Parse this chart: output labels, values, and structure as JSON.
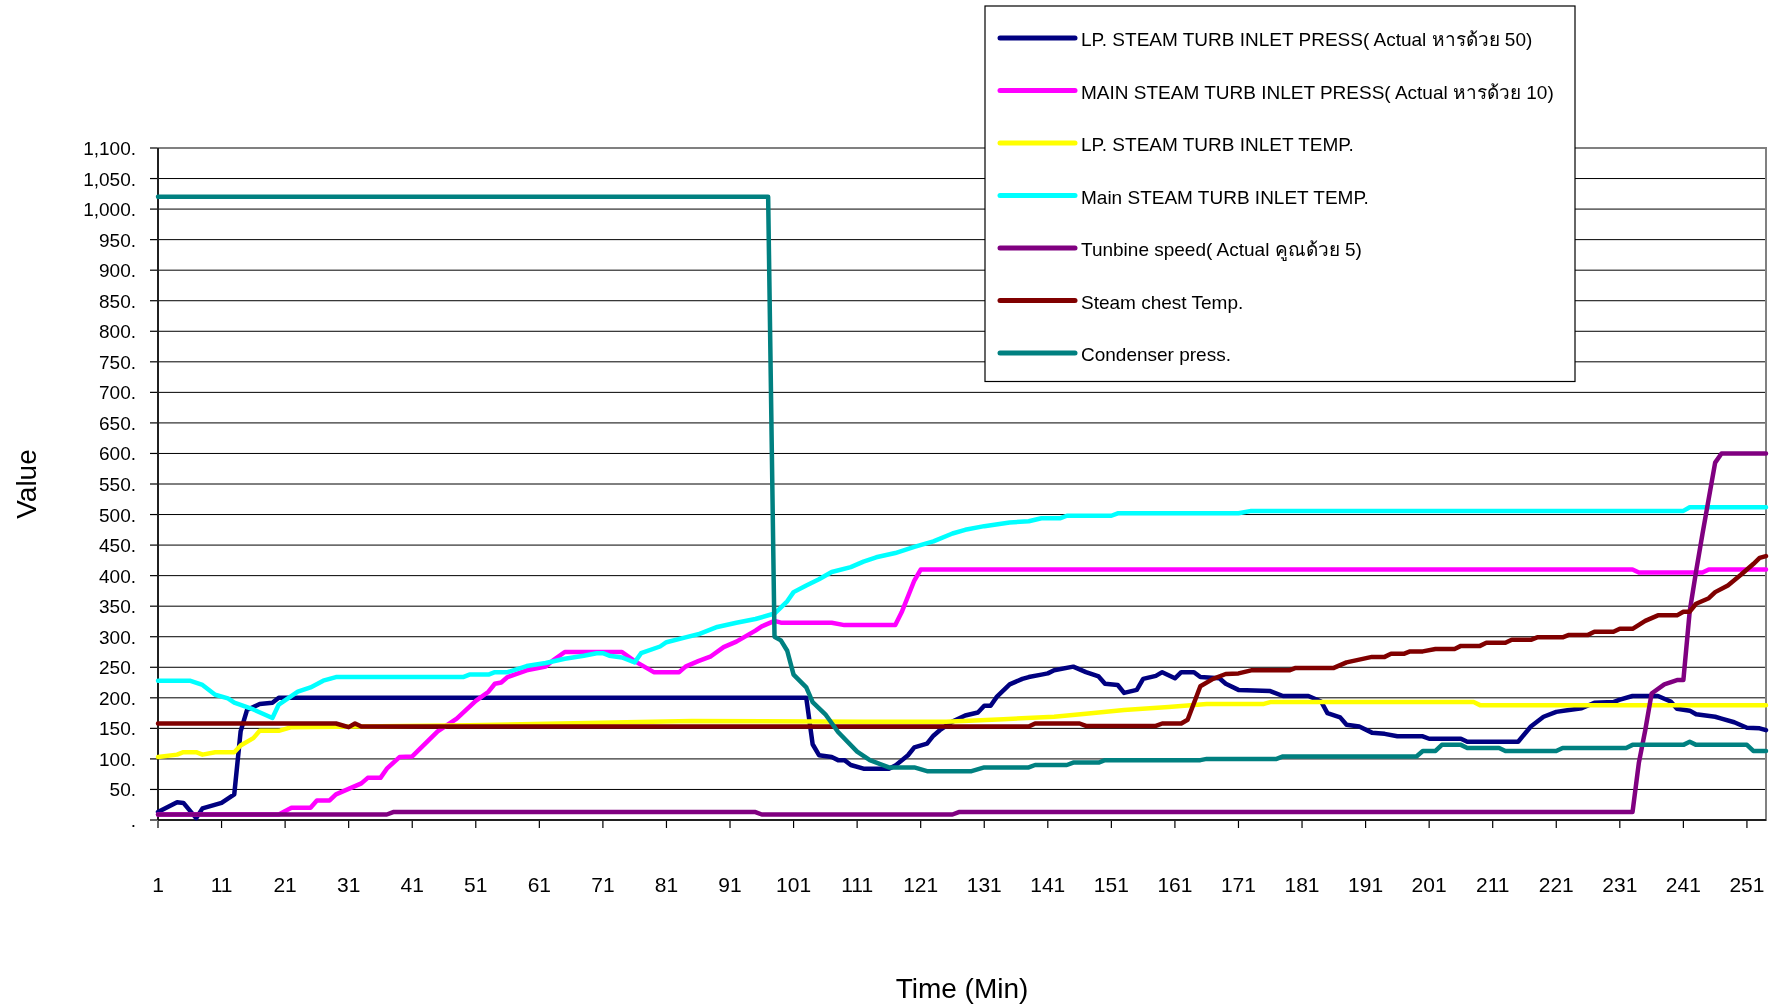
{
  "chart_data": {
    "type": "line",
    "xlabel": "Time (Min)",
    "ylabel": "Value",
    "xlim": [
      1,
      254
    ],
    "xticks": [
      1,
      11,
      21,
      31,
      41,
      51,
      61,
      71,
      81,
      91,
      101,
      111,
      121,
      131,
      141,
      151,
      161,
      171,
      181,
      191,
      201,
      211,
      221,
      231,
      241,
      251
    ],
    "ylim": [
      0,
      1100
    ],
    "yticks": [
      {
        "value": 0,
        "label": "."
      },
      {
        "value": 50,
        "label": "50."
      },
      {
        "value": 100,
        "label": "100."
      },
      {
        "value": 150,
        "label": "150."
      },
      {
        "value": 200,
        "label": "200."
      },
      {
        "value": 250,
        "label": "250."
      },
      {
        "value": 300,
        "label": "300."
      },
      {
        "value": 350,
        "label": "350."
      },
      {
        "value": 400,
        "label": "400."
      },
      {
        "value": 450,
        "label": "450."
      },
      {
        "value": 500,
        "label": "500."
      },
      {
        "value": 550,
        "label": "550."
      },
      {
        "value": 600,
        "label": "600."
      },
      {
        "value": 650,
        "label": "650."
      },
      {
        "value": 700,
        "label": "700."
      },
      {
        "value": 750,
        "label": "750."
      },
      {
        "value": 800,
        "label": "800."
      },
      {
        "value": 850,
        "label": "850."
      },
      {
        "value": 900,
        "label": "900."
      },
      {
        "value": 950,
        "label": "950."
      },
      {
        "value": 1000,
        "label": "1,000."
      },
      {
        "value": 1050,
        "label": "1,050."
      },
      {
        "value": 1100,
        "label": "1,100."
      }
    ],
    "grid": "y",
    "legend": "top right",
    "marker": "none",
    "line_style": "solid",
    "series": [
      {
        "name": "LP. STEAM TURB INLET PRESS( Actual หารด้วย 50)",
        "color": "#000080",
        "x": [
          1,
          4,
          5,
          7,
          8,
          11,
          13,
          14,
          15,
          17,
          19,
          20,
          103,
          104,
          105,
          107,
          108,
          109,
          110,
          112,
          116,
          117,
          119,
          120,
          122,
          123,
          124,
          126,
          128,
          130,
          131,
          132,
          133,
          135,
          137,
          138,
          140,
          141,
          142,
          145,
          147,
          149,
          150,
          152,
          153,
          155,
          156,
          158,
          159,
          161,
          162,
          164,
          165,
          168,
          169,
          171,
          176,
          178,
          182,
          184,
          185,
          187,
          188,
          190,
          192,
          194,
          196,
          200,
          201,
          206,
          207,
          215,
          217,
          219,
          221,
          223,
          225,
          227,
          230,
          231,
          233,
          237,
          239,
          240,
          242,
          243,
          246,
          247,
          249,
          251,
          253,
          254
        ],
        "values": [
          13,
          29,
          28,
          3,
          19,
          28,
          42,
          145,
          180,
          190,
          192,
          200,
          200,
          124,
          106,
          103,
          98,
          98,
          90,
          84,
          84,
          89,
          106,
          119,
          125,
          138,
          147,
          161,
          171,
          176,
          187,
          187,
          202,
          222,
          231,
          234,
          238,
          240,
          245,
          251,
          242,
          235,
          223,
          221,
          208,
          213,
          231,
          236,
          242,
          232,
          242,
          242,
          234,
          232,
          223,
          213,
          211,
          203,
          203,
          194,
          175,
          168,
          156,
          153,
          143,
          141,
          137,
          137,
          133,
          133,
          128,
          128,
          153,
          169,
          177,
          180,
          183,
          192,
          193,
          197,
          203,
          203,
          194,
          182,
          179,
          173,
          169,
          166,
          160,
          151,
          150,
          147
        ]
      },
      {
        "name": "MAIN STEAM TURB INLET PRESS( Actual หารด้วย 10)",
        "color": "#ff00ff",
        "x": [
          1,
          20,
          22,
          25,
          26,
          28,
          29,
          31,
          33,
          34,
          36,
          37,
          39,
          41,
          45,
          48,
          51,
          53,
          54,
          55,
          56,
          59,
          62,
          63,
          65,
          74,
          76,
          79,
          83,
          84,
          86,
          88,
          90,
          92,
          95,
          96,
          98,
          99,
          107,
          109,
          117,
          118,
          120,
          121,
          233,
          234,
          244,
          245,
          254
        ],
        "values": [
          9,
          9,
          20,
          20,
          32,
          32,
          42,
          51,
          60,
          69,
          69,
          84,
          103,
          104,
          145,
          166,
          195,
          210,
          223,
          225,
          234,
          245,
          251,
          260,
          275,
          275,
          260,
          242,
          242,
          251,
          260,
          268,
          283,
          292,
          310,
          317,
          326,
          323,
          323,
          319,
          319,
          340,
          392,
          410,
          410,
          405,
          405,
          410,
          410
        ]
      },
      {
        "name": "LP. STEAM TURB INLET TEMP.",
        "color": "#ffff00",
        "x": [
          1,
          4,
          5,
          7,
          8,
          10,
          13,
          14,
          16,
          17,
          20,
          22,
          50,
          85,
          112,
          125,
          134,
          142,
          147,
          153,
          160,
          166,
          175,
          176,
          208,
          209,
          254
        ],
        "values": [
          103,
          107,
          111,
          111,
          107,
          111,
          111,
          122,
          134,
          146,
          146,
          152,
          155,
          162,
          161,
          161,
          165,
          169,
          174,
          180,
          185,
          190,
          190,
          193,
          193,
          188,
          188
        ]
      },
      {
        "name": "Main STEAM TURB INLET TEMP.",
        "color": "#00ffff",
        "x": [
          1,
          6,
          8,
          10,
          12,
          13,
          16,
          19,
          20,
          23,
          25,
          27,
          29,
          49,
          50,
          53,
          54,
          56,
          59,
          62,
          65,
          68,
          70,
          71,
          72,
          74,
          76,
          77,
          80,
          81,
          84,
          86,
          89,
          92,
          95,
          98,
          100,
          101,
          103,
          105,
          107,
          110,
          112,
          114,
          117,
          120,
          123,
          126,
          128,
          131,
          135,
          138,
          140,
          143,
          144,
          151,
          152,
          171,
          173,
          241,
          242,
          254
        ],
        "values": [
          228,
          228,
          221,
          205,
          199,
          192,
          181,
          167,
          189,
          210,
          217,
          228,
          234,
          234,
          238,
          238,
          242,
          242,
          252,
          257,
          264,
          269,
          273,
          273,
          269,
          266,
          258,
          273,
          284,
          291,
          299,
          304,
          316,
          323,
          329,
          338,
          358,
          373,
          384,
          394,
          406,
          414,
          423,
          430,
          437,
          447,
          456,
          469,
          475,
          481,
          487,
          489,
          494,
          494,
          498,
          498,
          502,
          502,
          506,
          506,
          512,
          512
        ]
      },
      {
        "name": "Tunbine speed( Actual คูณด้วย 5)",
        "color": "#800080",
        "x": [
          1,
          37,
          38,
          95,
          96,
          126,
          127,
          233,
          234,
          235,
          236,
          238,
          240,
          241,
          242,
          243,
          244,
          246,
          247,
          254
        ],
        "values": [
          9,
          9,
          13,
          13,
          9,
          9,
          13,
          13,
          94,
          147,
          207,
          222,
          229,
          229,
          342,
          407,
          468,
          585,
          600,
          600
        ]
      },
      {
        "name": "Steam chest Temp.",
        "color": "#800000",
        "x": [
          1,
          29,
          31,
          32,
          33,
          138,
          139,
          146,
          147,
          158,
          159,
          162,
          163,
          165,
          167,
          169,
          171,
          173,
          179,
          180,
          186,
          188,
          192,
          194,
          195,
          197,
          198,
          200,
          202,
          205,
          206,
          209,
          210,
          213,
          214,
          217,
          218,
          222,
          223,
          226,
          227,
          230,
          231,
          233,
          235,
          237,
          240,
          241,
          242,
          243,
          245,
          246,
          248,
          250,
          252,
          253,
          254
        ],
        "values": [
          158,
          158,
          152,
          158,
          153,
          153,
          158,
          158,
          154,
          154,
          158,
          158,
          164,
          219,
          231,
          239,
          240,
          245,
          245,
          249,
          249,
          258,
          267,
          267,
          272,
          272,
          276,
          276,
          280,
          280,
          285,
          285,
          290,
          290,
          295,
          295,
          299,
          299,
          303,
          303,
          308,
          308,
          313,
          313,
          326,
          335,
          335,
          341,
          341,
          354,
          363,
          373,
          384,
          401,
          419,
          429,
          432
        ]
      },
      {
        "name": "Condenser press.",
        "color": "#008080",
        "x": [
          1,
          97,
          98,
          99,
          100,
          101,
          103,
          104,
          106,
          108,
          111,
          113,
          116,
          120,
          122,
          129,
          131,
          138,
          139,
          144,
          145,
          149,
          150,
          165,
          166,
          177,
          178,
          199,
          200,
          202,
          203,
          206,
          207,
          212,
          213,
          221,
          222,
          232,
          233,
          241,
          242,
          243,
          251,
          252,
          254
        ],
        "values": [
          1020,
          1020,
          300,
          294,
          277,
          238,
          217,
          193,
          173,
          144,
          112,
          98,
          86,
          86,
          80,
          80,
          86,
          86,
          90,
          90,
          94,
          94,
          98,
          98,
          100,
          100,
          104,
          104,
          113,
          113,
          123,
          123,
          118,
          118,
          113,
          113,
          118,
          118,
          123,
          123,
          128,
          123,
          123,
          113,
          113
        ]
      }
    ]
  }
}
